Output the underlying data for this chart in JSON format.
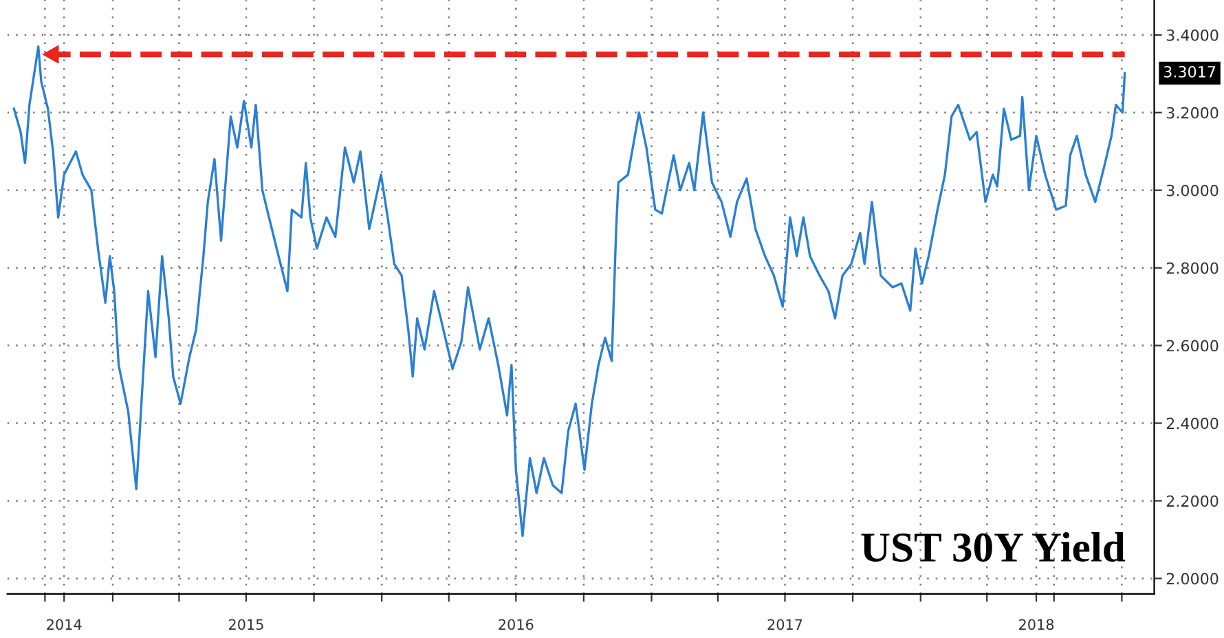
{
  "chart_data": {
    "type": "line",
    "title": "UST 30Y Yield",
    "x": [
      "2014-08-20",
      "2014-08-29",
      "2014-09-04",
      "2014-09-10",
      "2014-09-22",
      "2014-09-26",
      "2014-10-05",
      "2014-10-12",
      "2014-10-19",
      "2014-10-27",
      "2014-11-12",
      "2014-11-21",
      "2014-12-03",
      "2014-12-12",
      "2014-12-22",
      "2014-12-28",
      "2015-01-03",
      "2015-01-09",
      "2015-01-22",
      "2015-02-02",
      "2015-02-12",
      "2015-02-18",
      "2015-02-28",
      "2015-03-09",
      "2015-03-18",
      "2015-03-24",
      "2015-04-03",
      "2015-04-15",
      "2015-04-24",
      "2015-05-04",
      "2015-05-10",
      "2015-05-19",
      "2015-05-28",
      "2015-06-10",
      "2015-06-19",
      "2015-06-28",
      "2015-07-08",
      "2015-07-14",
      "2015-07-23",
      "2015-08-01",
      "2015-08-14",
      "2015-08-26",
      "2015-09-01",
      "2015-09-14",
      "2015-09-20",
      "2015-09-26",
      "2015-10-05",
      "2015-10-18",
      "2015-10-30",
      "2015-11-12",
      "2015-11-24",
      "2015-12-03",
      "2015-12-15",
      "2015-12-31",
      "2016-01-09",
      "2016-01-18",
      "2016-01-28",
      "2016-02-06",
      "2016-02-12",
      "2016-02-18",
      "2016-02-28",
      "2016-03-12",
      "2016-03-21",
      "2016-04-06",
      "2016-04-18",
      "2016-04-27",
      "2016-05-13",
      "2016-05-25",
      "2016-06-07",
      "2016-06-19",
      "2016-06-25",
      "2016-07-01",
      "2016-07-10",
      "2016-07-20",
      "2016-07-29",
      "2016-08-08",
      "2016-08-20",
      "2016-09-01",
      "2016-09-10",
      "2016-09-20",
      "2016-10-02",
      "2016-10-12",
      "2016-10-21",
      "2016-10-30",
      "2016-11-08",
      "2016-11-14",
      "2016-11-17",
      "2016-11-30",
      "2016-12-15",
      "2016-12-25",
      "2017-01-06",
      "2017-01-15",
      "2017-01-31",
      "2017-02-09",
      "2017-02-21",
      "2017-02-28",
      "2017-03-12",
      "2017-03-24",
      "2017-04-06",
      "2017-04-18",
      "2017-04-27",
      "2017-05-10",
      "2017-05-22",
      "2017-06-04",
      "2017-06-16",
      "2017-06-28",
      "2017-07-08",
      "2017-07-17",
      "2017-07-26",
      "2017-08-04",
      "2017-08-17",
      "2017-08-29",
      "2017-09-07",
      "2017-09-17",
      "2017-09-29",
      "2017-10-11",
      "2017-10-17",
      "2017-10-27",
      "2017-11-08",
      "2017-11-24",
      "2017-12-06",
      "2017-12-18",
      "2017-12-25",
      "2018-01-03",
      "2018-01-12",
      "2018-01-24",
      "2018-02-03",
      "2018-02-12",
      "2018-02-21",
      "2018-03-09",
      "2018-03-18",
      "2018-03-30",
      "2018-04-09",
      "2018-04-15",
      "2018-04-24",
      "2018-05-04",
      "2018-05-16",
      "2018-05-19",
      "2018-05-28",
      "2018-06-07",
      "2018-06-19",
      "2018-07-04",
      "2018-07-17",
      "2018-07-23",
      "2018-08-01",
      "2018-08-13",
      "2018-08-26",
      "2018-09-07",
      "2018-09-17",
      "2018-09-23",
      "2018-10-02",
      "2018-10-05"
    ],
    "series": [
      {
        "color": "#2a7fd4",
        "values": [
          3.21,
          3.15,
          3.07,
          3.22,
          3.37,
          3.28,
          3.21,
          3.1,
          2.93,
          3.04,
          3.1,
          3.04,
          3.0,
          2.85,
          2.71,
          2.83,
          2.74,
          2.55,
          2.43,
          2.23,
          2.55,
          2.74,
          2.57,
          2.83,
          2.67,
          2.52,
          2.45,
          2.57,
          2.64,
          2.83,
          2.97,
          3.08,
          2.87,
          3.19,
          3.11,
          3.23,
          3.11,
          3.22,
          3.0,
          2.93,
          2.83,
          2.74,
          2.95,
          2.93,
          3.07,
          2.93,
          2.85,
          2.93,
          2.88,
          3.11,
          3.02,
          3.1,
          2.9,
          3.04,
          2.93,
          2.81,
          2.78,
          2.64,
          2.52,
          2.67,
          2.59,
          2.74,
          2.67,
          2.54,
          2.61,
          2.75,
          2.59,
          2.67,
          2.55,
          2.42,
          2.55,
          2.28,
          2.11,
          2.31,
          2.22,
          2.31,
          2.24,
          2.22,
          2.38,
          2.45,
          2.28,
          2.45,
          2.55,
          2.62,
          2.56,
          2.9,
          3.02,
          3.04,
          3.2,
          3.11,
          2.95,
          2.94,
          3.09,
          3.0,
          3.07,
          3.0,
          3.2,
          3.02,
          2.97,
          2.88,
          2.97,
          3.03,
          2.9,
          2.83,
          2.78,
          2.7,
          2.93,
          2.83,
          2.93,
          2.83,
          2.78,
          2.74,
          2.67,
          2.78,
          2.81,
          2.89,
          2.81,
          2.97,
          2.78,
          2.75,
          2.76,
          2.69,
          2.85,
          2.76,
          2.83,
          2.95,
          3.04,
          3.19,
          3.22,
          3.13,
          3.15,
          2.97,
          3.04,
          3.01,
          3.21,
          3.13,
          3.14,
          3.24,
          3.0,
          3.14,
          3.04,
          2.95,
          2.96,
          3.09,
          3.14,
          3.04,
          2.97,
          3.06,
          3.14,
          3.22,
          3.2,
          3.3017
        ]
      }
    ],
    "xlim": [
      "2014-08-11",
      "2018-11-14"
    ],
    "xticks": [
      {
        "value": "2014-10-01",
        "label": null
      },
      {
        "value": "2014-10-27",
        "label": "2014"
      },
      {
        "value": "2015-01-01",
        "label": null
      },
      {
        "value": "2015-04-01",
        "label": null
      },
      {
        "value": "2015-07-01",
        "label": "2015"
      },
      {
        "value": "2015-10-01",
        "label": null
      },
      {
        "value": "2016-01-01",
        "label": null
      },
      {
        "value": "2016-04-01",
        "label": null
      },
      {
        "value": "2016-07-01",
        "label": "2016"
      },
      {
        "value": "2016-10-01",
        "label": null
      },
      {
        "value": "2017-01-01",
        "label": null
      },
      {
        "value": "2017-04-01",
        "label": null
      },
      {
        "value": "2017-07-01",
        "label": "2017"
      },
      {
        "value": "2017-10-01",
        "label": null
      },
      {
        "value": "2018-01-01",
        "label": null
      },
      {
        "value": "2018-04-01",
        "label": null
      },
      {
        "value": "2018-06-07",
        "label": "2018"
      },
      {
        "value": "2018-07-01",
        "label": null
      },
      {
        "value": "2018-10-01",
        "label": null
      }
    ],
    "ylim": [
      1.96,
      3.49
    ],
    "yticks": [
      {
        "value": 2.0,
        "label": "2.0000"
      },
      {
        "value": 2.2,
        "label": "2.2000"
      },
      {
        "value": 2.4,
        "label": "2.4000"
      },
      {
        "value": 2.6,
        "label": "2.6000"
      },
      {
        "value": 2.8,
        "label": "2.8000"
      },
      {
        "value": 3.0,
        "label": "3.0000"
      },
      {
        "value": 3.2,
        "label": "3.2000"
      },
      {
        "value": 3.4,
        "label": "3.4000"
      }
    ],
    "ref_lines": [
      {
        "axis": "y",
        "value": 3.35,
        "color": "#e8251e",
        "line_style": "dashed"
      }
    ],
    "annotations": [
      {
        "text": "3.3017",
        "x": "2018-10-05",
        "y": 3.3017
      }
    ],
    "grid": true,
    "legend": false
  }
}
